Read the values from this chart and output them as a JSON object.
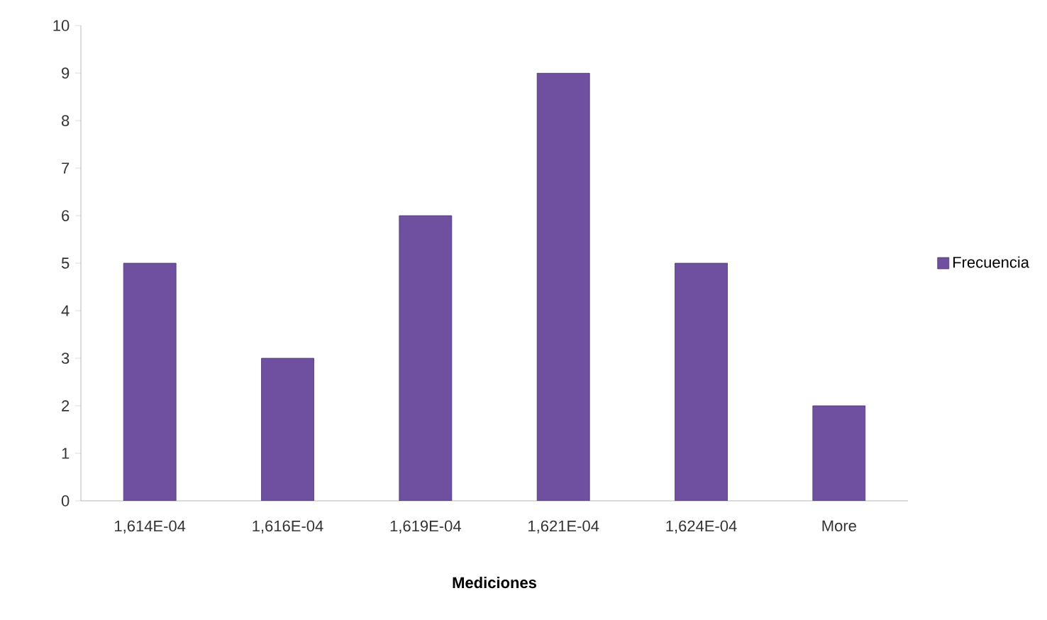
{
  "chart_data": {
    "type": "bar",
    "xlabel": "Mediciones",
    "categories": [
      "1,614E-04",
      "1,616E-04",
      "1,619E-04",
      "1,621E-04",
      "1,624E-04",
      "More"
    ],
    "series": [
      {
        "name": "Frecuencia",
        "color": "#6f4fa0",
        "values": [
          5,
          3,
          6,
          9,
          5,
          2
        ]
      }
    ],
    "ylim": [
      0,
      10
    ],
    "yticks": [
      0,
      1,
      2,
      3,
      4,
      5,
      6,
      7,
      8,
      9,
      10
    ],
    "grid": false,
    "legend": "right"
  }
}
